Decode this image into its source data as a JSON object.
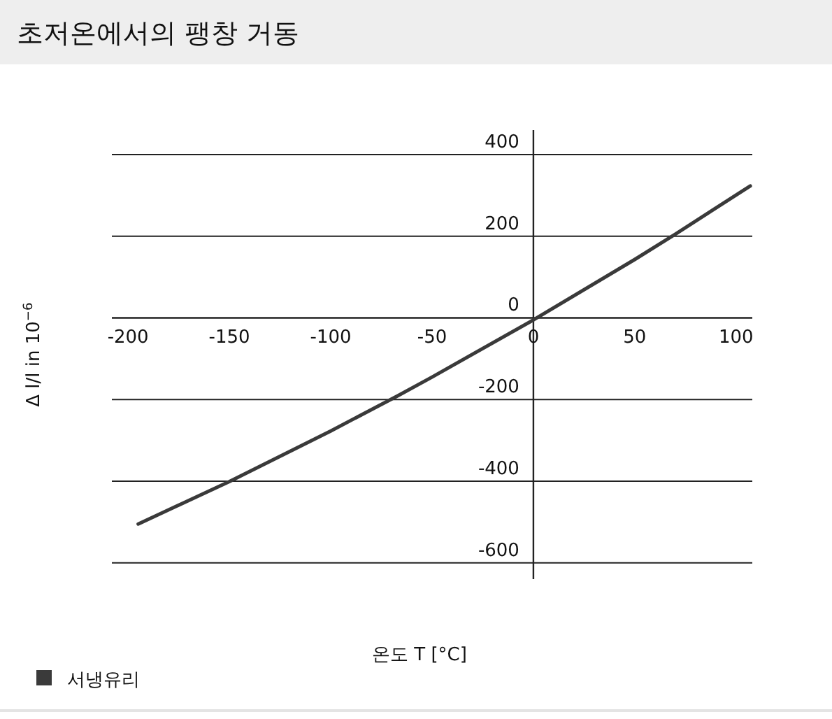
{
  "chart_data": {
    "type": "line",
    "title": "초저온에서의 팽창 거동",
    "xlabel": "온도 T [°C]",
    "ylabel": "Δ l/l in 10$^{−6}$",
    "x": [
      -195,
      -150,
      -100,
      -67,
      -50,
      0,
      50,
      70,
      100,
      107
    ],
    "series": [
      {
        "name": "서냉유리",
        "color": "#3a3a3a",
        "values": [
          -505,
          -401,
          -277,
          -191,
          -145,
          -5,
          143,
          205,
          301,
          323
        ]
      }
    ],
    "xlim": [
      -208,
      108
    ],
    "ylim": [
      -640,
      460
    ],
    "xticks": [
      -200,
      -150,
      -100,
      -50,
      0,
      50,
      100
    ],
    "yticks": [
      -600,
      -400,
      -200,
      0,
      200,
      400
    ],
    "grid": "y",
    "legend": "bottom left",
    "marker": "none",
    "line_style": "solid"
  }
}
